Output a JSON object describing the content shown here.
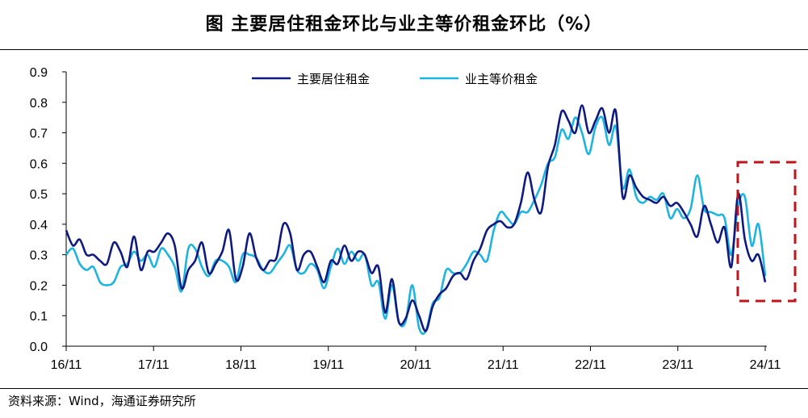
{
  "title": "图 主要居住租金环比与业主等价租金环比（%）",
  "source": "资料来源：Wind，海通证券研究所",
  "colors": {
    "primary_rent": "#0f1a80",
    "oer": "#1eb4e0",
    "highlight_box": "#c0141c"
  },
  "chart_data": {
    "type": "line",
    "title": "图 主要居住租金环比与业主等价租金环比（%）",
    "xlabel": "",
    "ylabel": "",
    "ylim": [
      0,
      0.9
    ],
    "yticks": [
      "0.0",
      "0.1",
      "0.2",
      "0.3",
      "0.4",
      "0.5",
      "0.6",
      "0.7",
      "0.8",
      "0.9"
    ],
    "xticks": [
      "16/11",
      "17/11",
      "18/11",
      "19/11",
      "20/11",
      "21/11",
      "22/11",
      "23/11",
      "24/11"
    ],
    "x_start": "2016-11",
    "x_end": "2024-11",
    "legend_position": "top-center",
    "grid": false,
    "highlight": "red dashed box around the latest months (mid-2024 to 2024/11)",
    "series": [
      {
        "name": "主要居住租金",
        "color": "#0f1a80",
        "values": [
          0.38,
          0.33,
          0.35,
          0.3,
          0.3,
          0.28,
          0.27,
          0.34,
          0.31,
          0.26,
          0.36,
          0.25,
          0.31,
          0.31,
          0.34,
          0.37,
          0.33,
          0.19,
          0.25,
          0.28,
          0.34,
          0.24,
          0.27,
          0.31,
          0.38,
          0.22,
          0.26,
          0.37,
          0.29,
          0.25,
          0.28,
          0.29,
          0.4,
          0.37,
          0.25,
          0.3,
          0.31,
          0.26,
          0.21,
          0.28,
          0.27,
          0.33,
          0.28,
          0.31,
          0.3,
          0.24,
          0.26,
          0.11,
          0.22,
          0.08,
          0.09,
          0.15,
          0.1,
          0.05,
          0.13,
          0.17,
          0.19,
          0.23,
          0.24,
          0.22,
          0.28,
          0.32,
          0.38,
          0.4,
          0.41,
          0.39,
          0.4,
          0.47,
          0.57,
          0.48,
          0.44,
          0.59,
          0.66,
          0.77,
          0.74,
          0.7,
          0.79,
          0.7,
          0.74,
          0.78,
          0.7,
          0.77,
          0.49,
          0.56,
          0.52,
          0.49,
          0.48,
          0.47,
          0.49,
          0.46,
          0.47,
          0.44,
          0.4,
          0.36,
          0.46,
          0.4,
          0.34,
          0.39,
          0.26,
          0.5,
          0.35,
          0.28,
          0.3,
          0.21
        ]
      },
      {
        "name": "业主等价租金",
        "color": "#1eb4e0",
        "values": [
          0.3,
          0.32,
          0.27,
          0.25,
          0.26,
          0.21,
          0.2,
          0.21,
          0.26,
          0.27,
          0.31,
          0.28,
          0.3,
          0.26,
          0.32,
          0.3,
          0.26,
          0.18,
          0.32,
          0.32,
          0.26,
          0.23,
          0.28,
          0.28,
          0.26,
          0.21,
          0.3,
          0.3,
          0.29,
          0.25,
          0.24,
          0.27,
          0.3,
          0.33,
          0.25,
          0.24,
          0.27,
          0.25,
          0.19,
          0.26,
          0.32,
          0.27,
          0.31,
          0.28,
          0.3,
          0.2,
          0.21,
          0.09,
          0.2,
          0.08,
          0.08,
          0.2,
          0.06,
          0.05,
          0.14,
          0.16,
          0.25,
          0.24,
          0.24,
          0.27,
          0.31,
          0.3,
          0.28,
          0.38,
          0.44,
          0.42,
          0.4,
          0.44,
          0.44,
          0.48,
          0.53,
          0.6,
          0.62,
          0.71,
          0.68,
          0.75,
          0.7,
          0.63,
          0.72,
          0.75,
          0.66,
          0.72,
          0.52,
          0.58,
          0.49,
          0.47,
          0.49,
          0.48,
          0.5,
          0.42,
          0.45,
          0.42,
          0.45,
          0.56,
          0.45,
          0.44,
          0.43,
          0.42,
          0.3,
          0.46,
          0.49,
          0.33,
          0.4,
          0.23
        ]
      }
    ]
  }
}
